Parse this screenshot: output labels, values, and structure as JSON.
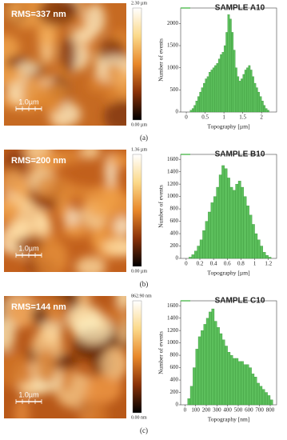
{
  "chart_data": [
    {
      "type": "histogram",
      "title": "SAMPLE A10",
      "x_label": "Topography [µm]",
      "y_label": "Number of events",
      "color": "#5cbf5c",
      "bins": [
        0.1,
        0.15,
        0.2,
        0.25,
        0.3,
        0.35,
        0.4,
        0.45,
        0.5,
        0.55,
        0.6,
        0.65,
        0.7,
        0.75,
        0.8,
        0.85,
        0.9,
        0.95,
        1.0,
        1.05,
        1.1,
        1.15,
        1.2,
        1.25,
        1.3,
        1.35,
        1.4,
        1.45,
        1.5,
        1.55,
        1.6,
        1.65,
        1.7,
        1.75,
        1.8,
        1.85,
        1.9,
        1.95,
        2.0,
        2.05,
        2.1,
        2.15,
        2.2
      ],
      "values": [
        40,
        80,
        150,
        250,
        350,
        450,
        550,
        650,
        750,
        800,
        900,
        950,
        1000,
        1050,
        1100,
        1200,
        1300,
        1350,
        1500,
        1800,
        2200,
        2100,
        1800,
        1400,
        1000,
        800,
        700,
        750,
        850,
        950,
        1000,
        1050,
        950,
        800,
        650,
        550,
        450,
        350,
        250,
        150,
        80,
        40
      ],
      "xlim": [
        -0.15,
        2.4
      ],
      "xticks": [
        0,
        0.5,
        1,
        1.5,
        2
      ],
      "ylim": [
        0,
        2350
      ],
      "yticks": [
        0,
        500,
        1000,
        1500,
        2000
      ]
    },
    {
      "type": "histogram",
      "title": "SAMPLE B10",
      "x_label": "Topography [µm]",
      "y_label": "Number of events",
      "color": "#5cbf5c",
      "bins": [
        0.04,
        0.08,
        0.12,
        0.16,
        0.2,
        0.24,
        0.28,
        0.32,
        0.36,
        0.4,
        0.44,
        0.48,
        0.52,
        0.56,
        0.6,
        0.64,
        0.68,
        0.72,
        0.76,
        0.8,
        0.84,
        0.88,
        0.92,
        0.96,
        1.0,
        1.04,
        1.08,
        1.12,
        1.16,
        1.2,
        1.24
      ],
      "values": [
        20,
        60,
        120,
        200,
        300,
        450,
        600,
        750,
        900,
        1000,
        1150,
        1350,
        1500,
        1450,
        1300,
        1150,
        1100,
        1200,
        1250,
        1150,
        1000,
        850,
        700,
        550,
        400,
        300,
        200,
        100,
        50,
        20
      ],
      "xlim": [
        -0.08,
        1.32
      ],
      "xticks": [
        0,
        0.2,
        0.4,
        0.6,
        0.8,
        1,
        1.2
      ],
      "ylim": [
        0,
        1680
      ],
      "yticks": [
        0,
        200,
        400,
        600,
        800,
        1000,
        1200,
        1400,
        1600
      ]
    },
    {
      "type": "histogram",
      "title": "SAMPLE C10",
      "x_label": "Topography [nm]",
      "y_label": "Number of events",
      "color": "#5cbf5c",
      "bins": [
        25,
        50,
        75,
        100,
        125,
        150,
        175,
        200,
        225,
        250,
        275,
        300,
        325,
        350,
        375,
        400,
        425,
        450,
        475,
        500,
        525,
        550,
        575,
        600,
        625,
        650,
        675,
        700,
        725,
        750,
        775,
        800,
        825
      ],
      "values": [
        100,
        300,
        600,
        900,
        1100,
        1200,
        1300,
        1400,
        1500,
        1550,
        1350,
        1250,
        1150,
        1050,
        950,
        850,
        800,
        750,
        750,
        700,
        700,
        650,
        650,
        600,
        500,
        450,
        350,
        300,
        250,
        200,
        150,
        80
      ],
      "xlim": [
        -40,
        860
      ],
      "xticks": [
        0,
        100,
        200,
        300,
        400,
        500,
        600,
        700,
        800
      ],
      "ylim": [
        0,
        1680
      ],
      "yticks": [
        0,
        200,
        400,
        600,
        800,
        1000,
        1200,
        1400,
        1600
      ]
    }
  ],
  "panels": [
    {
      "rms": "RMS=337 nm",
      "scale_bar": "1.0µm",
      "colorbar_max": "2.30 µm",
      "colorbar_min": "0.00 µm",
      "caption": "(a)"
    },
    {
      "rms": "RMS=200 nm",
      "scale_bar": "1.0µm",
      "colorbar_max": "1.36 µm",
      "colorbar_min": "0.00 µm",
      "caption": "(b)"
    },
    {
      "rms": "RMS=144 nm",
      "scale_bar": "1.0µm",
      "colorbar_max": "862.90 nm",
      "colorbar_min": "0.00 nm",
      "caption": "(c)"
    }
  ]
}
